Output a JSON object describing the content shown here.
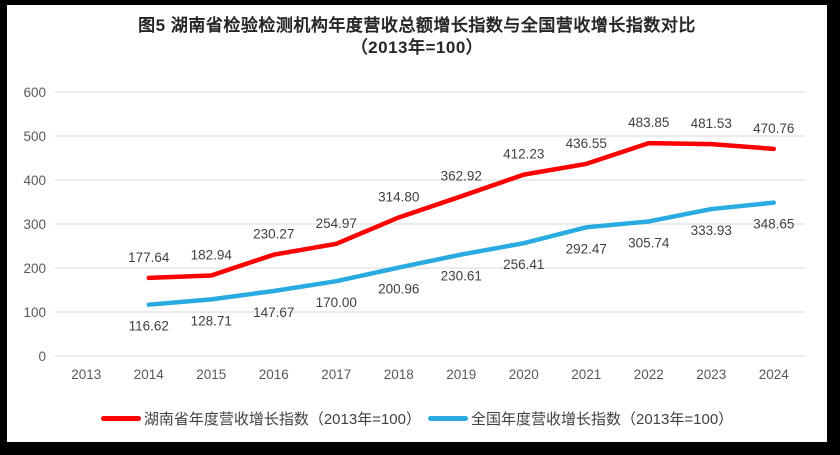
{
  "title": {
    "line1": "图5 湖南省检验检测机构年度营收总额增长指数与全国营收增长指数对比",
    "line2": "（2013年=100）"
  },
  "legend": [
    {
      "label": "湖南省年度营收增长指数（2013年=100）",
      "color": "#fe0000"
    },
    {
      "label": "全国年度营收增长指数（2013年=100）",
      "color": "#29abe2"
    }
  ],
  "colors": {
    "hunan_series": "#fe0000",
    "national_series": "#29abe2",
    "gridline": "#d9d9d9",
    "axis_tick_label": "#595959",
    "data_label": "#404040",
    "title_text": "#262626",
    "frame_border": "#000000",
    "background": "#ffffff"
  },
  "chart_data": {
    "type": "line",
    "title": "图5 湖南省检验检测机构年度营收总额增长指数与全国营收增长指数对比（2013年=100）",
    "categories": [
      "2013",
      "2014",
      "2015",
      "2016",
      "2017",
      "2018",
      "2019",
      "2020",
      "2021",
      "2022",
      "2023",
      "2024"
    ],
    "series": [
      {
        "name": "湖南省年度营收增长指数（2013年=100）",
        "color": "#fe0000",
        "label_position": "above",
        "values": [
          null,
          177.64,
          182.94,
          230.27,
          254.97,
          314.8,
          362.92,
          412.23,
          436.55,
          483.85,
          481.53,
          470.76
        ]
      },
      {
        "name": "全国年度营收增长指数（2013年=100）",
        "color": "#29abe2",
        "label_position": "below",
        "values": [
          null,
          116.62,
          128.71,
          147.67,
          170.0,
          200.96,
          230.61,
          256.41,
          292.47,
          305.74,
          333.93,
          348.65
        ]
      }
    ],
    "xlabel": "",
    "ylabel": "",
    "ylim": [
      0,
      600
    ],
    "ytick_step": 100,
    "grid": true,
    "legend_position": "bottom",
    "data_labels_decimals": 2
  }
}
